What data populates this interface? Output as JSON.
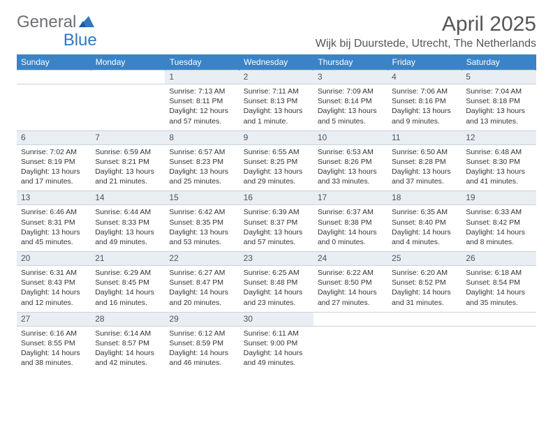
{
  "logo": {
    "part1": "General",
    "part2": "Blue"
  },
  "title": "April 2025",
  "location": "Wijk bij Duurstede, Utrecht, The Netherlands",
  "colors": {
    "header_bg": "#3b83c7",
    "daynum_bg": "#e9eef3",
    "border": "#c9d2da",
    "logo_gray": "#6b6f73",
    "logo_blue": "#2f78c2",
    "text": "#333333",
    "background": "#ffffff"
  },
  "dayHeaders": [
    "Sunday",
    "Monday",
    "Tuesday",
    "Wednesday",
    "Thursday",
    "Friday",
    "Saturday"
  ],
  "weeks": [
    [
      null,
      null,
      {
        "n": "1",
        "sunrise": "7:13 AM",
        "sunset": "8:11 PM",
        "daylight": "Daylight: 12 hours and 57 minutes."
      },
      {
        "n": "2",
        "sunrise": "7:11 AM",
        "sunset": "8:13 PM",
        "daylight": "Daylight: 13 hours and 1 minute."
      },
      {
        "n": "3",
        "sunrise": "7:09 AM",
        "sunset": "8:14 PM",
        "daylight": "Daylight: 13 hours and 5 minutes."
      },
      {
        "n": "4",
        "sunrise": "7:06 AM",
        "sunset": "8:16 PM",
        "daylight": "Daylight: 13 hours and 9 minutes."
      },
      {
        "n": "5",
        "sunrise": "7:04 AM",
        "sunset": "8:18 PM",
        "daylight": "Daylight: 13 hours and 13 minutes."
      }
    ],
    [
      {
        "n": "6",
        "sunrise": "7:02 AM",
        "sunset": "8:19 PM",
        "daylight": "Daylight: 13 hours and 17 minutes."
      },
      {
        "n": "7",
        "sunrise": "6:59 AM",
        "sunset": "8:21 PM",
        "daylight": "Daylight: 13 hours and 21 minutes."
      },
      {
        "n": "8",
        "sunrise": "6:57 AM",
        "sunset": "8:23 PM",
        "daylight": "Daylight: 13 hours and 25 minutes."
      },
      {
        "n": "9",
        "sunrise": "6:55 AM",
        "sunset": "8:25 PM",
        "daylight": "Daylight: 13 hours and 29 minutes."
      },
      {
        "n": "10",
        "sunrise": "6:53 AM",
        "sunset": "8:26 PM",
        "daylight": "Daylight: 13 hours and 33 minutes."
      },
      {
        "n": "11",
        "sunrise": "6:50 AM",
        "sunset": "8:28 PM",
        "daylight": "Daylight: 13 hours and 37 minutes."
      },
      {
        "n": "12",
        "sunrise": "6:48 AM",
        "sunset": "8:30 PM",
        "daylight": "Daylight: 13 hours and 41 minutes."
      }
    ],
    [
      {
        "n": "13",
        "sunrise": "6:46 AM",
        "sunset": "8:31 PM",
        "daylight": "Daylight: 13 hours and 45 minutes."
      },
      {
        "n": "14",
        "sunrise": "6:44 AM",
        "sunset": "8:33 PM",
        "daylight": "Daylight: 13 hours and 49 minutes."
      },
      {
        "n": "15",
        "sunrise": "6:42 AM",
        "sunset": "8:35 PM",
        "daylight": "Daylight: 13 hours and 53 minutes."
      },
      {
        "n": "16",
        "sunrise": "6:39 AM",
        "sunset": "8:37 PM",
        "daylight": "Daylight: 13 hours and 57 minutes."
      },
      {
        "n": "17",
        "sunrise": "6:37 AM",
        "sunset": "8:38 PM",
        "daylight": "Daylight: 14 hours and 0 minutes."
      },
      {
        "n": "18",
        "sunrise": "6:35 AM",
        "sunset": "8:40 PM",
        "daylight": "Daylight: 14 hours and 4 minutes."
      },
      {
        "n": "19",
        "sunrise": "6:33 AM",
        "sunset": "8:42 PM",
        "daylight": "Daylight: 14 hours and 8 minutes."
      }
    ],
    [
      {
        "n": "20",
        "sunrise": "6:31 AM",
        "sunset": "8:43 PM",
        "daylight": "Daylight: 14 hours and 12 minutes."
      },
      {
        "n": "21",
        "sunrise": "6:29 AM",
        "sunset": "8:45 PM",
        "daylight": "Daylight: 14 hours and 16 minutes."
      },
      {
        "n": "22",
        "sunrise": "6:27 AM",
        "sunset": "8:47 PM",
        "daylight": "Daylight: 14 hours and 20 minutes."
      },
      {
        "n": "23",
        "sunrise": "6:25 AM",
        "sunset": "8:48 PM",
        "daylight": "Daylight: 14 hours and 23 minutes."
      },
      {
        "n": "24",
        "sunrise": "6:22 AM",
        "sunset": "8:50 PM",
        "daylight": "Daylight: 14 hours and 27 minutes."
      },
      {
        "n": "25",
        "sunrise": "6:20 AM",
        "sunset": "8:52 PM",
        "daylight": "Daylight: 14 hours and 31 minutes."
      },
      {
        "n": "26",
        "sunrise": "6:18 AM",
        "sunset": "8:54 PM",
        "daylight": "Daylight: 14 hours and 35 minutes."
      }
    ],
    [
      {
        "n": "27",
        "sunrise": "6:16 AM",
        "sunset": "8:55 PM",
        "daylight": "Daylight: 14 hours and 38 minutes."
      },
      {
        "n": "28",
        "sunrise": "6:14 AM",
        "sunset": "8:57 PM",
        "daylight": "Daylight: 14 hours and 42 minutes."
      },
      {
        "n": "29",
        "sunrise": "6:12 AM",
        "sunset": "8:59 PM",
        "daylight": "Daylight: 14 hours and 46 minutes."
      },
      {
        "n": "30",
        "sunrise": "6:11 AM",
        "sunset": "9:00 PM",
        "daylight": "Daylight: 14 hours and 49 minutes."
      },
      null,
      null,
      null
    ]
  ]
}
